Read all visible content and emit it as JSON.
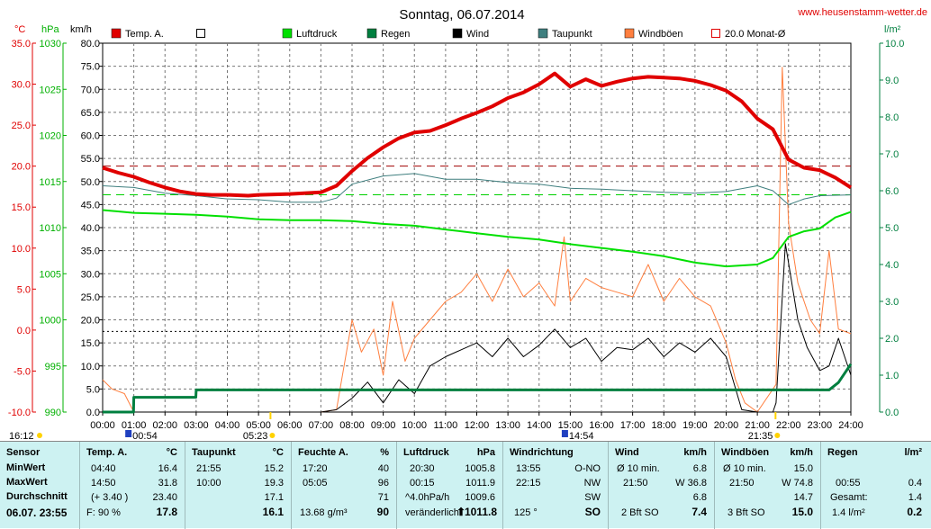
{
  "title": "Sonntag, 06.07.2014",
  "site": "www.heusenstamm-wetter.de",
  "axes": {
    "left1_unit": "°C",
    "left2_unit": "hPa",
    "left3_unit": "km/h",
    "right_unit": "l/m²",
    "temp_ticks": [
      "35.0",
      "30.0",
      "25.0",
      "20.0",
      "15.0",
      "10.0",
      "5.0",
      "0.0",
      "-5.0",
      "-10.0"
    ],
    "hpa_ticks": [
      "1030",
      "1025",
      "1020",
      "1015",
      "1010",
      "1005",
      "1000",
      "995",
      "990"
    ],
    "kmh_ticks": [
      "80.0",
      "75.0",
      "70.0",
      "65.0",
      "60.0",
      "55.0",
      "50.0",
      "45.0",
      "40.0",
      "35.0",
      "30.0",
      "25.0",
      "20.0",
      "15.0",
      "10.0",
      "5.0",
      "0.0"
    ],
    "rain_ticks": [
      "10.0",
      "9.0",
      "8.0",
      "7.0",
      "6.0",
      "5.0",
      "4.0",
      "3.0",
      "2.0",
      "1.0",
      "0.0"
    ],
    "x_ticks": [
      "00:00",
      "01:00",
      "02:00",
      "03:00",
      "04:00",
      "05:00",
      "06:00",
      "07:00",
      "08:00",
      "09:00",
      "10:00",
      "11:00",
      "12:00",
      "13:00",
      "14:00",
      "15:00",
      "16:00",
      "17:00",
      "18:00",
      "19:00",
      "20:00",
      "21:00",
      "22:00",
      "23:00",
      "24:00"
    ]
  },
  "legend": [
    {
      "label": "Temp. A.",
      "color": "#e00000",
      "style": "fill"
    },
    {
      "label": "",
      "color": "#ffffff",
      "style": "box"
    },
    {
      "label": "Luftdruck",
      "color": "#00e000",
      "style": "fill"
    },
    {
      "label": "Regen",
      "color": "#007f3f",
      "style": "fill"
    },
    {
      "label": "Wind",
      "color": "#000000",
      "style": "fill"
    },
    {
      "label": "Taupunkt",
      "color": "#3f7f7f",
      "style": "fill"
    },
    {
      "label": "Windböen",
      "color": "#ff7f3f",
      "style": "fill"
    },
    {
      "label": "20.0 Monat-Ø",
      "color": "#e00000",
      "style": "box"
    }
  ],
  "markers": {
    "left_time": "16:12",
    "sunrise": "05:23",
    "sunset": "21:35",
    "moon1": "00:54",
    "moon2": "14:54"
  },
  "chart_data": {
    "type": "line",
    "xlim": [
      0,
      24
    ],
    "temp_ylim": [
      -10,
      35
    ],
    "pressure_ylim": [
      990,
      1030
    ],
    "wind_ylim": [
      0,
      80
    ],
    "rain_ylim": [
      0,
      10
    ],
    "reference_lines": {
      "temp_month_avg": 20.0,
      "dew_ref": 16.5,
      "wind_ref": 17.5
    },
    "series": [
      {
        "name": "Temp. A.",
        "axis": "temp",
        "color": "#e00000",
        "x": [
          0,
          0.5,
          1,
          1.5,
          2,
          2.5,
          3,
          3.5,
          4,
          4.67,
          5,
          6,
          7,
          7.5,
          8,
          8.5,
          9,
          9.5,
          10,
          10.5,
          11,
          11.5,
          12,
          12.5,
          13,
          13.5,
          14,
          14.5,
          15,
          15.5,
          16,
          16.5,
          17,
          17.5,
          18,
          18.5,
          19,
          19.5,
          20,
          20.5,
          21,
          21.5,
          22,
          22.5,
          23,
          23.5,
          24
        ],
        "y": [
          19.8,
          19.2,
          18.7,
          18.0,
          17.4,
          16.9,
          16.6,
          16.5,
          16.5,
          16.4,
          16.5,
          16.6,
          16.8,
          17.6,
          19.4,
          21.0,
          22.3,
          23.4,
          24.1,
          24.3,
          25.0,
          25.8,
          26.5,
          27.3,
          28.3,
          29.0,
          30.0,
          31.3,
          29.7,
          30.6,
          29.8,
          30.3,
          30.7,
          30.9,
          30.8,
          30.7,
          30.4,
          29.9,
          29.2,
          27.9,
          25.8,
          24.5,
          20.8,
          19.8,
          19.5,
          18.6,
          17.4
        ]
      },
      {
        "name": "Taupunkt",
        "axis": "temp",
        "color": "#3f7f7f",
        "x": [
          0,
          1,
          2,
          3,
          4,
          5,
          6,
          7,
          7.5,
          8,
          9,
          10,
          11,
          12,
          13,
          14,
          15,
          16,
          17,
          18,
          19,
          20,
          21,
          21.5,
          22,
          22.5,
          23,
          24
        ],
        "y": [
          17.6,
          17.4,
          16.7,
          16.4,
          16.0,
          15.9,
          15.6,
          15.6,
          16.1,
          17.8,
          18.8,
          19.1,
          18.4,
          18.4,
          18.0,
          17.8,
          17.3,
          17.2,
          17.0,
          16.8,
          16.7,
          16.9,
          17.6,
          17.0,
          15.3,
          16.0,
          16.4,
          16.5
        ]
      },
      {
        "name": "Luftdruck",
        "axis": "pressure",
        "color": "#00e000",
        "x": [
          0,
          1,
          2,
          3,
          4,
          5,
          6,
          7,
          8,
          9,
          10,
          11,
          12,
          13,
          14,
          15,
          16,
          17,
          18,
          19,
          20,
          21,
          21.5,
          22,
          22.5,
          23,
          23.5,
          24
        ],
        "y": [
          1011.9,
          1011.6,
          1011.5,
          1011.4,
          1011.2,
          1010.9,
          1010.8,
          1010.8,
          1010.7,
          1010.4,
          1010.2,
          1009.8,
          1009.4,
          1009.0,
          1008.7,
          1008.2,
          1007.8,
          1007.4,
          1006.9,
          1006.2,
          1005.8,
          1006.0,
          1006.7,
          1009.0,
          1009.6,
          1009.9,
          1011.1,
          1011.7
        ]
      },
      {
        "name": "Wind",
        "axis": "wind",
        "color": "#000000",
        "x": [
          0,
          1,
          2,
          3,
          4,
          5,
          6,
          7,
          7.5,
          8,
          8.5,
          9,
          9.5,
          10,
          10.5,
          11,
          11.5,
          12,
          12.5,
          13,
          13.5,
          14,
          14.5,
          15,
          15.5,
          16,
          16.5,
          17,
          17.5,
          18,
          18.5,
          19,
          19.5,
          20,
          20.5,
          21,
          21.5,
          21.6,
          21.9,
          22.3,
          22.6,
          23,
          23.3,
          23.6,
          24
        ],
        "y": [
          0,
          0,
          0,
          0,
          0,
          0,
          0,
          0,
          0.5,
          3.0,
          6.5,
          2.0,
          7.0,
          4.0,
          10.0,
          12.0,
          13.5,
          15.0,
          12.0,
          16.0,
          12.0,
          14.5,
          18.0,
          14.0,
          16.0,
          11.0,
          14.0,
          13.5,
          16.0,
          12.0,
          15.0,
          13.0,
          16.0,
          12.0,
          0.5,
          0,
          0,
          2.0,
          36.5,
          20.0,
          14.0,
          9.0,
          10.0,
          16.0,
          8.0
        ]
      },
      {
        "name": "Windböen",
        "axis": "wind",
        "color": "#ff7f3f",
        "x": [
          0,
          0.3,
          0.7,
          1,
          2,
          3,
          4,
          5,
          6,
          7,
          7.5,
          8,
          8.3,
          8.7,
          9,
          9.3,
          9.7,
          10,
          10.5,
          11,
          11.5,
          12,
          12.5,
          13,
          13.5,
          14,
          14.5,
          14.8,
          15,
          15.5,
          16,
          16.5,
          17,
          17.5,
          18,
          18.5,
          19,
          19.5,
          20,
          20.3,
          20.6,
          21,
          21.6,
          21.8,
          22,
          22.3,
          22.7,
          23,
          23.3,
          23.6,
          24
        ],
        "y": [
          7.0,
          5.0,
          4.0,
          0,
          0,
          0,
          0,
          0,
          0,
          0,
          0.5,
          20.0,
          13.0,
          18.0,
          8.0,
          24.0,
          11.0,
          16.0,
          20.0,
          24.0,
          26.0,
          30.0,
          24.0,
          31.0,
          25.0,
          28.0,
          23.0,
          38.0,
          24.0,
          29.0,
          27.0,
          26.0,
          25.0,
          32.0,
          24.0,
          29.0,
          25.0,
          23.0,
          15.0,
          7.0,
          2.0,
          0,
          6.0,
          74.8,
          41.0,
          28.0,
          20.0,
          17.0,
          35.0,
          18.0,
          17.0
        ]
      },
      {
        "name": "Regen",
        "axis": "rain",
        "color": "#007f3f",
        "x": [
          0,
          0.99,
          1,
          2.99,
          3,
          21.5,
          22.5,
          23.3,
          23.6,
          24
        ],
        "y": [
          0,
          0,
          0.4,
          0.4,
          0.6,
          0.6,
          0.6,
          0.6,
          0.8,
          1.3
        ]
      }
    ]
  },
  "panel": {
    "sensor": {
      "hdr": "Sensor",
      "rows": [
        "MinWert",
        "MaxWert",
        "Durchschnitt"
      ],
      "date": "06.07. 23:55"
    },
    "temp": {
      "hdr": "Temp. A.",
      "unit": "°C",
      "min_t": "04:40",
      "min_v": "16.4",
      "max_t": "14:50",
      "max_v": "31.8",
      "avg_t": "(+ 3.40 )",
      "avg_v": "23.40",
      "cur_t": "F: 90 %",
      "cur_v": "17.8"
    },
    "dew": {
      "hdr": "Taupunkt",
      "unit": "°C",
      "min_t": "21:55",
      "min_v": "15.2",
      "max_t": "10:00",
      "max_v": "19.3",
      "avg_v": "17.1",
      "cur_v": "16.1"
    },
    "hum": {
      "hdr": "Feuchte A.",
      "unit": "%",
      "min_t": "17:20",
      "min_v": "40",
      "max_t": "05:05",
      "max_v": "96",
      "avg_v": "71",
      "cur_t": "13.68 g/m³",
      "cur_v": "90"
    },
    "press": {
      "hdr": "Luftdruck",
      "unit": "hPa",
      "min_t": "20:30",
      "min_v": "1005.8",
      "max_t": "00:15",
      "max_v": "1011.9",
      "avg_t": "^4.0hPa/h",
      "avg_v": "1009.6",
      "cur_t": "veränderlich",
      "cur_arrow": "⬆",
      "cur_v": "1011.8"
    },
    "dir": {
      "hdr": "Windrichtung",
      "min_t": "13:55",
      "min_v": "O-NO",
      "max_t": "22:15",
      "max_v": "NW",
      "avg_v": "SW",
      "cur_t": "125 °",
      "cur_v": "SO"
    },
    "wind": {
      "hdr": "Wind",
      "unit": "km/h",
      "min_t": "Ø 10 min.",
      "min_v": "6.8",
      "max_t": "21:50",
      "max_v": "W 36.8",
      "avg_v": "6.8",
      "cur_t": "2 Bft SO",
      "cur_v": "7.4"
    },
    "gust": {
      "hdr": "Windböen",
      "unit": "km/h",
      "min_t": "Ø 10 min.",
      "min_v": "15.0",
      "max_t": "21:50",
      "max_v": "W 74.8",
      "avg_v": "14.7",
      "cur_t": "3 Bft SO",
      "cur_v": "15.0"
    },
    "rain": {
      "hdr": "Regen",
      "unit": "l/m²",
      "max_t": "00:55",
      "max_v": "0.4",
      "avg_t": "Gesamt:",
      "avg_v": "1.4",
      "cur_t": "1.4 l/m²",
      "cur_v": "0.2"
    }
  }
}
